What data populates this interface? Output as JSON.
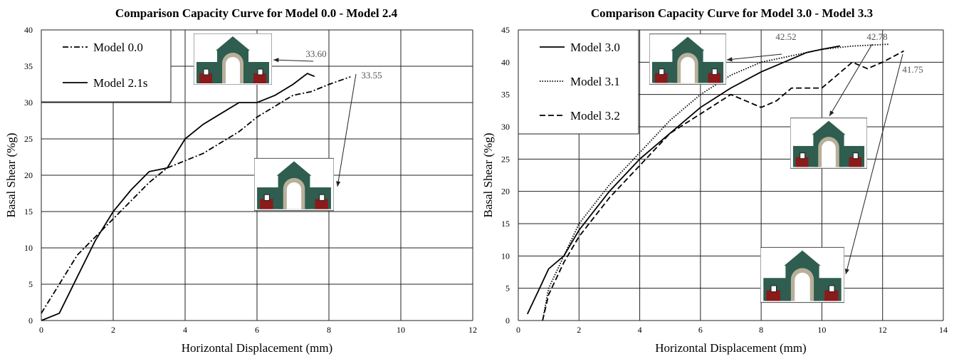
{
  "chart_data": [
    {
      "type": "line",
      "title": "Comparison Capacity Curve for Model 0.0 - Model 2.4",
      "xlabel": "Horizontal Displacement (mm)",
      "ylabel": "Basal Shear (%g)",
      "xlim": [
        0,
        12
      ],
      "ylim": [
        0,
        40
      ],
      "xticks": [
        0,
        2,
        4,
        6,
        8,
        10,
        12
      ],
      "yticks": [
        0,
        5,
        10,
        15,
        20,
        25,
        30,
        35,
        40
      ],
      "grid": true,
      "legend": "upper left",
      "series": [
        {
          "name": "Model 0.0",
          "color": "#000000",
          "linestyle": "dashdot",
          "x": [
            0,
            0.5,
            1,
            1.5,
            2,
            2.5,
            3,
            3.5,
            4,
            4.5,
            5,
            5.5,
            6,
            6.5,
            7,
            7.5,
            8,
            8.6
          ],
          "values": [
            1,
            5,
            9,
            11.5,
            14,
            16.5,
            19,
            21,
            22,
            23,
            24.5,
            26,
            28,
            29.5,
            31,
            31.5,
            32.5,
            33.55
          ]
        },
        {
          "name": "Model 2.1s",
          "color": "#000000",
          "linestyle": "solid",
          "x": [
            0,
            0.5,
            1,
            1.5,
            2,
            2.5,
            3,
            3.5,
            4,
            4.5,
            5,
            5.5,
            6,
            6.5,
            7,
            7.4,
            7.6
          ],
          "values": [
            0,
            1,
            6,
            11,
            15,
            18,
            20.5,
            21,
            25,
            27,
            28.5,
            30,
            30,
            31,
            32.5,
            34,
            33.6
          ]
        }
      ],
      "annotations": [
        "33.60",
        "33.55"
      ]
    },
    {
      "type": "line",
      "title": "Comparison Capacity Curve for Model 3.0 - Model 3.3",
      "xlabel": "Horizontal Displacement (mm)",
      "ylabel": "Basal Shear (%g)",
      "xlim": [
        0,
        14
      ],
      "ylim": [
        0,
        45
      ],
      "xticks": [
        0,
        2,
        4,
        6,
        8,
        10,
        12,
        14
      ],
      "yticks": [
        0,
        5,
        10,
        15,
        20,
        25,
        30,
        35,
        40,
        45
      ],
      "grid": true,
      "legend": "upper left",
      "series": [
        {
          "name": "Model 3.0",
          "color": "#000000",
          "linestyle": "solid",
          "x": [
            0.3,
            0.7,
            1,
            1.5,
            2,
            3,
            4,
            5,
            6,
            7,
            8,
            9,
            9.5,
            10,
            10.6
          ],
          "values": [
            1,
            5,
            8,
            10,
            14,
            20,
            25,
            29,
            33,
            36,
            38.5,
            40.5,
            41.5,
            42,
            42.52
          ]
        },
        {
          "name": "Model 3.1",
          "color": "#000000",
          "linestyle": "dotted",
          "x": [
            0.8,
            1,
            1.5,
            2,
            3,
            4,
            5,
            6,
            7,
            8,
            9,
            10,
            11,
            12.2
          ],
          "values": [
            0,
            5,
            10,
            15,
            21,
            26,
            31,
            35,
            38,
            40,
            41,
            42,
            42.5,
            42.78
          ]
        },
        {
          "name": "Model 3.2",
          "color": "#000000",
          "linestyle": "dashed",
          "x": [
            0.8,
            1,
            1.5,
            2,
            3,
            4,
            5,
            6,
            7,
            7.5,
            8,
            8.5,
            9,
            9.5,
            10,
            10.5,
            11,
            11.5,
            12,
            12.7
          ],
          "values": [
            0,
            4,
            9,
            13,
            19,
            24,
            29,
            32,
            35,
            34,
            33,
            34,
            36,
            36,
            36,
            38,
            40,
            39,
            40,
            41.75
          ]
        }
      ],
      "annotations": [
        "42.52",
        "42.78",
        "41.75"
      ]
    }
  ]
}
